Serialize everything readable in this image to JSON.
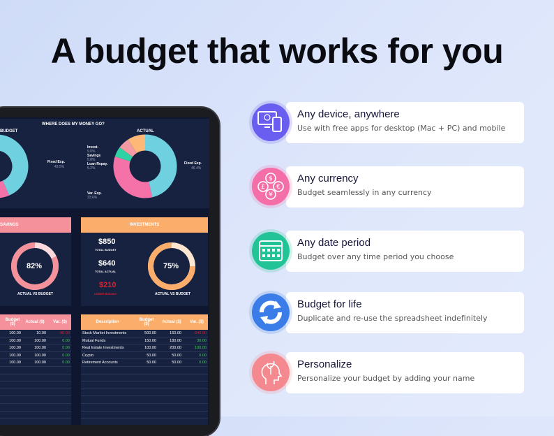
{
  "headline": "A budget that works for you",
  "spreadsheet": {
    "chart_section_title": "WHERE DOES MY MONEY GO?",
    "budget_donut": {
      "title": "BUDGET",
      "labels": [
        {
          "name": "Fixed Exp.",
          "value": "43.5%"
        }
      ],
      "fixed_share": 43.5
    },
    "actual_donut": {
      "title": "ACTUAL",
      "slices": [
        {
          "name": "Fixed Exp.",
          "value": 46.4,
          "label": "46.4%",
          "color": "#6fd0e0"
        },
        {
          "name": "Var. Exp.",
          "value": 33.6,
          "label": "33.6%",
          "color": "#f472a8"
        },
        {
          "name": "Loan Repay.",
          "value": 5.2,
          "label": "5.2%",
          "color": "#2ed3a5"
        },
        {
          "name": "Savings",
          "value": 5.8,
          "label": "5.8%",
          "color": "#f49aa3"
        },
        {
          "name": "Invest.",
          "value": 9.0,
          "label": "9.0%",
          "color": "#fdb877"
        }
      ]
    },
    "savings": {
      "title": "SAVINGS",
      "progress": 82,
      "progress_label": "82%",
      "caption": "ACTUAL VS BUDGET",
      "color": "#f4919a"
    },
    "investments": {
      "title": "INVESTMENTS",
      "total_budget": "$850",
      "total_budget_label": "TOTAL BUDGET",
      "total_actual": "$640",
      "total_actual_label": "TOTAL ACTUAL",
      "difference": "$210",
      "difference_label": "UNDER BUDGET",
      "progress": 75,
      "progress_label": "75%",
      "caption": "ACTUAL VS BUDGET",
      "color": "#fbae6c"
    },
    "savings_table": {
      "headers": [
        "Budget ($)",
        "Actual ($)",
        "Var. ($)"
      ],
      "rows": [
        [
          "100.00",
          "10.00",
          "-90.00"
        ],
        [
          "100.00",
          "100.00",
          "0.00"
        ],
        [
          "100.00",
          "100.00",
          "0.00"
        ],
        [
          "100.00",
          "100.00",
          "0.00"
        ],
        [
          "100.00",
          "100.00",
          "0.00"
        ]
      ]
    },
    "investments_table": {
      "headers": [
        "Description",
        "Budget ($)",
        "Actual ($)",
        "Var. ($)"
      ],
      "rows": [
        [
          "Stock Market Investments",
          "500.00",
          "160.00",
          "-340.00"
        ],
        [
          "Mutual Funds",
          "150.00",
          "180.00",
          "30.00"
        ],
        [
          "Real Estate Investments",
          "100.00",
          "200.00",
          "100.00"
        ],
        [
          "Crypto",
          "50.00",
          "50.00",
          "0.00"
        ],
        [
          "Retirement Accounts",
          "50.00",
          "50.00",
          "0.00"
        ]
      ]
    }
  },
  "features": [
    {
      "title": "Any device, anywhere",
      "description": "Use with free apps for desktop (Mac + PC) and mobile",
      "icon": "devices-icon",
      "color": "#6a5ef0"
    },
    {
      "title": "Any currency",
      "description": "Budget seamlessly in any currency",
      "icon": "currency-icon",
      "color": "#f46fa8"
    },
    {
      "title": "Any date period",
      "description": "Budget over any time period you choose",
      "icon": "calendar-icon",
      "color": "#22c497"
    },
    {
      "title": "Budget for life",
      "description": "Duplicate and re-use the spreadsheet indefinitely",
      "icon": "refresh-icon",
      "color": "#3a7ce8"
    },
    {
      "title": "Personalize",
      "description": "Personalize your budget by adding your name",
      "icon": "head-plant-icon",
      "color": "#f48a8f"
    }
  ]
}
